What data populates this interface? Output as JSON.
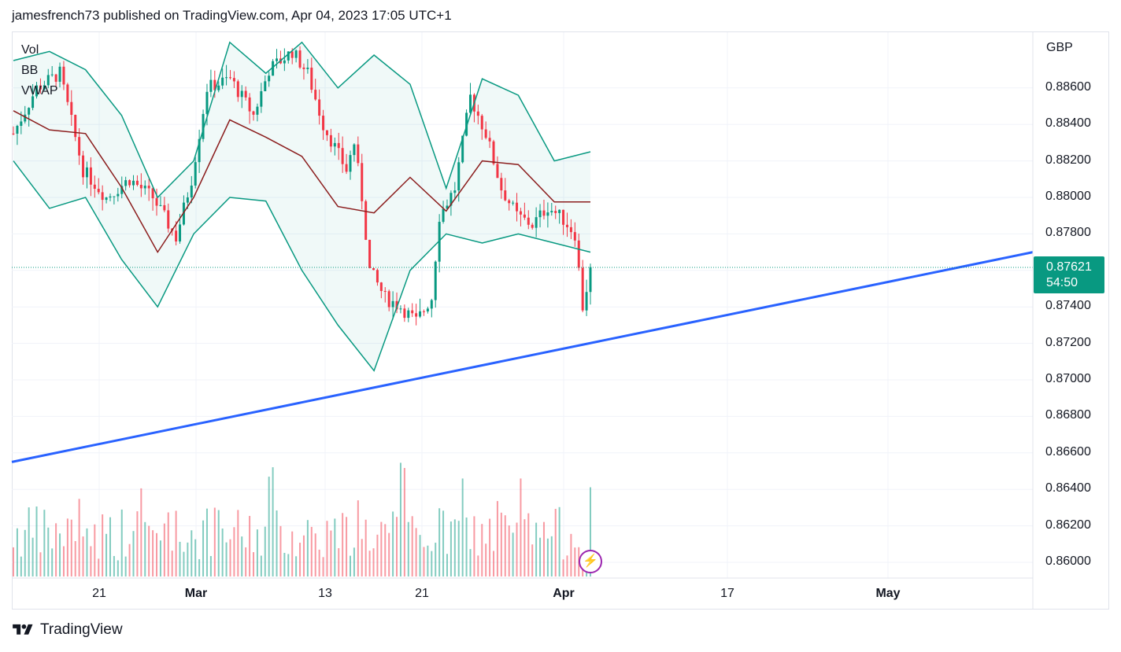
{
  "header": {
    "publisher_line": "jamesfrench73 published on TradingView.com, Apr 04, 2023 17:05 UTC+1"
  },
  "legend": {
    "vol": "Vol",
    "bb": "BB",
    "vwap": "VWAP"
  },
  "price_axis": {
    "currency": "GBP",
    "ticks": [
      "0.88600",
      "0.88400",
      "0.88200",
      "0.88000",
      "0.87800",
      "0.87400",
      "0.87200",
      "0.87000",
      "0.86800",
      "0.86600",
      "0.86400",
      "0.86200",
      "0.86000"
    ]
  },
  "time_axis": {
    "ticks": [
      {
        "label": "21",
        "bold": false
      },
      {
        "label": "Mar",
        "bold": true
      },
      {
        "label": "13",
        "bold": false
      },
      {
        "label": "21",
        "bold": false
      },
      {
        "label": "Apr",
        "bold": true
      },
      {
        "label": "17",
        "bold": false
      },
      {
        "label": "May",
        "bold": true
      }
    ]
  },
  "last_price": {
    "value": "0.87621",
    "countdown": "54:50",
    "color": "#089981"
  },
  "footer": {
    "brand": "TradingView"
  },
  "colors": {
    "up": "#089981",
    "down": "#f23645",
    "bb_band": "#089981",
    "bb_basis": "#8b1d1d",
    "trendline": "#2962ff",
    "grid": "#f0f3fa",
    "lightning": "#9c27b0"
  },
  "chart_data": {
    "type": "candlestick",
    "title": "",
    "ylabel": "GBP",
    "ylim": [
      0.8592,
      0.8888
    ],
    "x_ticks": [
      "21",
      "Mar",
      "13",
      "21",
      "Apr",
      "17",
      "May"
    ],
    "grid": true,
    "legend": [
      "Vol",
      "BB",
      "VWAP"
    ],
    "last_price": 0.87621,
    "trendline": {
      "start": {
        "date": "2023-02-14",
        "price": 0.8655
      },
      "end": {
        "date": "2023-05-21",
        "price": 0.877
      }
    },
    "bb_upper_approx": [
      0.8875,
      0.888,
      0.887,
      0.8845,
      0.88,
      0.882,
      0.8885,
      0.8868,
      0.8885,
      0.886,
      0.8878,
      0.8862,
      0.8805,
      0.8865,
      0.8856,
      0.882,
      0.8825
    ],
    "bb_lower_approx": [
      0.882,
      0.8794,
      0.88,
      0.8766,
      0.874,
      0.878,
      0.88,
      0.8798,
      0.876,
      0.873,
      0.8705,
      0.876,
      0.878,
      0.8775,
      0.878,
      0.8775,
      0.877
    ]
  }
}
